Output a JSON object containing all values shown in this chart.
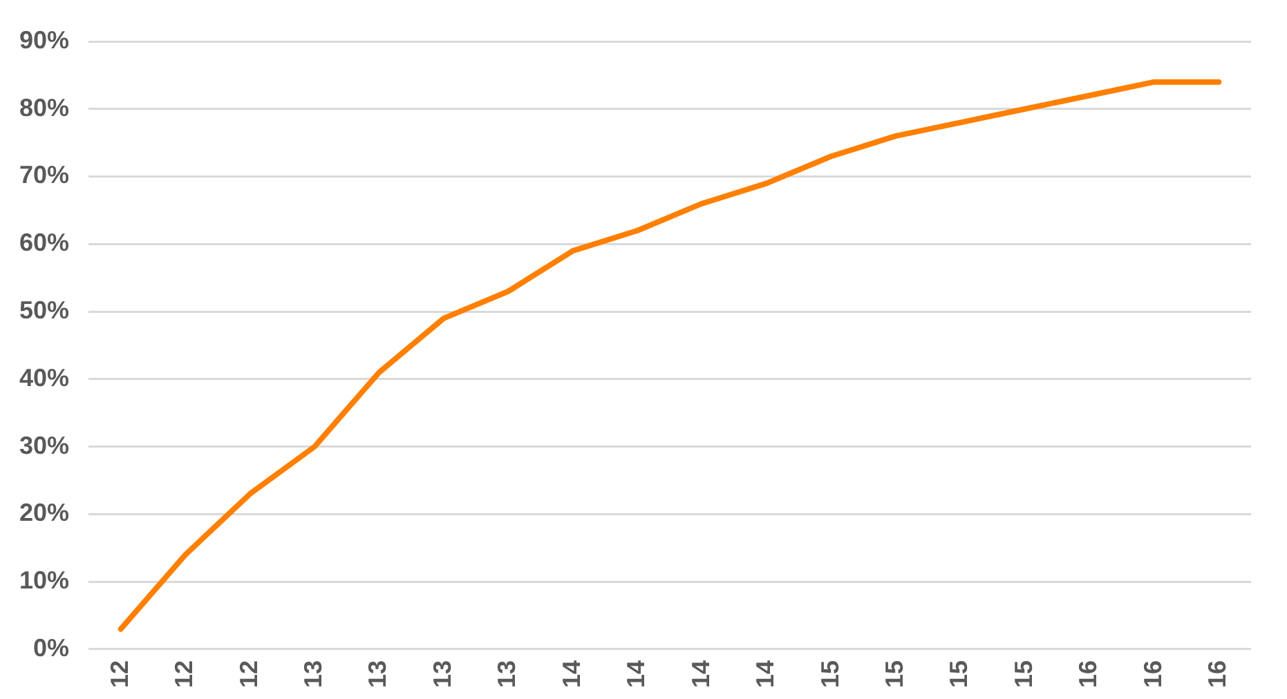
{
  "chart_data": {
    "type": "line",
    "categories": [
      "12",
      "12",
      "12",
      "13",
      "13",
      "13",
      "13",
      "14",
      "14",
      "14",
      "14",
      "15",
      "15",
      "15",
      "15",
      "16",
      "16",
      "16"
    ],
    "series": [
      {
        "color": "#ff7f00",
        "values": [
          3,
          14,
          23,
          30,
          41,
          49,
          53,
          59,
          62,
          66,
          69,
          73,
          76,
          78,
          80,
          82,
          84,
          84
        ]
      }
    ],
    "ylim": [
      0,
      90
    ],
    "yticks": [
      {
        "value": 0,
        "label": "0%"
      },
      {
        "value": 10,
        "label": "10%"
      },
      {
        "value": 20,
        "label": "20%"
      },
      {
        "value": 30,
        "label": "30%"
      },
      {
        "value": 40,
        "label": "40%"
      },
      {
        "value": 50,
        "label": "50%"
      },
      {
        "value": 60,
        "label": "60%"
      },
      {
        "value": 70,
        "label": "70%"
      },
      {
        "value": 80,
        "label": "80%"
      },
      {
        "value": 90,
        "label": "90%"
      }
    ],
    "grid": "y",
    "legend": false,
    "marker": "none",
    "line_style": "solid"
  }
}
